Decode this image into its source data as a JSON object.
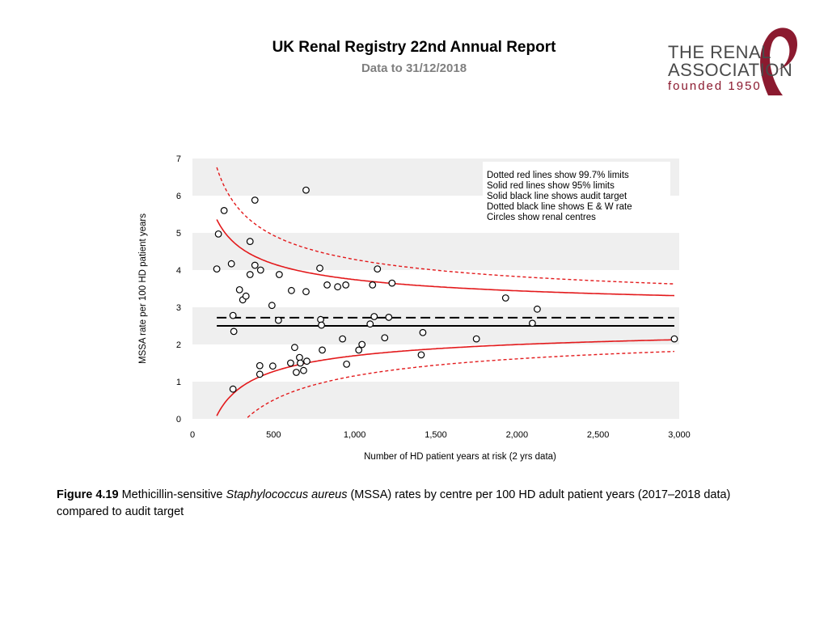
{
  "header": {
    "title": "UK Renal Registry 22nd Annual Report",
    "subtitle": "Data to 31/12/2018"
  },
  "logo": {
    "line1": "THE RENAL",
    "line2": "ASSOCIATION",
    "line3": "founded 1950",
    "colors": {
      "text": "#4a4a4a",
      "accent": "#8b1a2f"
    }
  },
  "caption": {
    "figure_label": "Figure 4.19",
    "text_before": " Methicillin-sensitive ",
    "italic": "Staphylococcus aureus",
    "text_after": " (MSSA) rates by centre per 100 HD adult patient years (2017–2018 data) compared to audit target"
  },
  "chart_data": {
    "type": "scatter",
    "xlabel": "Number of HD patient years at risk (2 yrs data)",
    "ylabel": "MSSA rate per 100 HD patient years",
    "xlim": [
      0,
      3000
    ],
    "ylim": [
      0,
      7
    ],
    "xticks": [
      0,
      500,
      1000,
      1500,
      2000,
      2500,
      3000
    ],
    "xtick_labels": [
      "0",
      "500",
      "1,000",
      "1,500",
      "2,000",
      "2,500",
      "3,000"
    ],
    "yticks": [
      0,
      1,
      2,
      3,
      4,
      5,
      6,
      7
    ],
    "ytick_labels": [
      "0",
      "1",
      "2",
      "3",
      "4",
      "5",
      "6",
      "7"
    ],
    "legend": [
      "Dotted red lines show 99.7% limits",
      "Solid red lines show 95% limits",
      "Solid black line shows audit target",
      "Dotted black line shows E & W rate",
      "Circles show renal centres"
    ],
    "legend_position": "top-right",
    "audit_target": 2.5,
    "ew_rate": 2.72,
    "x_range_start": 150,
    "x_range_end": 2970,
    "colors": {
      "limits": "#e3191b",
      "reference": "#000000",
      "band": "#efefef"
    },
    "points": [
      [
        150,
        4.03
      ],
      [
        160,
        4.97
      ],
      [
        195,
        5.6
      ],
      [
        240,
        4.17
      ],
      [
        250,
        2.78
      ],
      [
        255,
        2.35
      ],
      [
        250,
        0.8
      ],
      [
        290,
        3.47
      ],
      [
        310,
        3.2
      ],
      [
        330,
        3.3
      ],
      [
        355,
        3.88
      ],
      [
        355,
        4.77
      ],
      [
        385,
        4.13
      ],
      [
        385,
        5.88
      ],
      [
        420,
        4.0
      ],
      [
        415,
        1.43
      ],
      [
        415,
        1.2
      ],
      [
        490,
        3.05
      ],
      [
        495,
        1.42
      ],
      [
        530,
        2.65
      ],
      [
        535,
        3.88
      ],
      [
        605,
        1.5
      ],
      [
        610,
        3.45
      ],
      [
        630,
        1.92
      ],
      [
        640,
        1.25
      ],
      [
        660,
        1.65
      ],
      [
        665,
        1.5
      ],
      [
        685,
        1.3
      ],
      [
        700,
        6.15
      ],
      [
        700,
        3.42
      ],
      [
        705,
        1.55
      ],
      [
        785,
        4.05
      ],
      [
        790,
        2.67
      ],
      [
        795,
        2.52
      ],
      [
        800,
        1.85
      ],
      [
        830,
        3.6
      ],
      [
        895,
        3.55
      ],
      [
        925,
        2.15
      ],
      [
        945,
        3.6
      ],
      [
        950,
        1.47
      ],
      [
        1025,
        1.85
      ],
      [
        1045,
        2.0
      ],
      [
        1095,
        2.55
      ],
      [
        1110,
        3.6
      ],
      [
        1120,
        2.75
      ],
      [
        1140,
        4.03
      ],
      [
        1185,
        2.18
      ],
      [
        1210,
        2.73
      ],
      [
        1230,
        3.65
      ],
      [
        1410,
        1.72
      ],
      [
        1420,
        2.32
      ],
      [
        1750,
        2.15
      ],
      [
        1930,
        3.25
      ],
      [
        2095,
        2.57
      ],
      [
        2125,
        2.95
      ],
      [
        2970,
        2.15
      ]
    ]
  }
}
